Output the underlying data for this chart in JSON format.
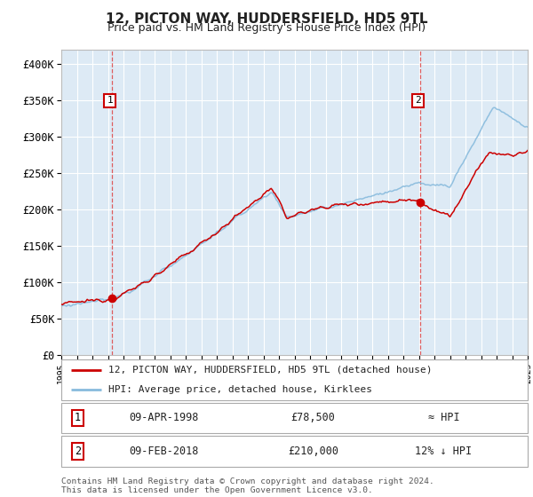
{
  "title": "12, PICTON WAY, HUDDERSFIELD, HD5 9TL",
  "subtitle": "Price paid vs. HM Land Registry's House Price Index (HPI)",
  "ylabel_ticks": [
    0,
    50000,
    100000,
    150000,
    200000,
    250000,
    300000,
    350000,
    400000
  ],
  "ylabel_labels": [
    "£0",
    "£50K",
    "£100K",
    "£150K",
    "£200K",
    "£250K",
    "£300K",
    "£350K",
    "£400K"
  ],
  "xlim_min": 1995,
  "xlim_max": 2025,
  "ylim_min": 0,
  "ylim_max": 420000,
  "bg_color": "#ddeaf5",
  "grid_color": "#ffffff",
  "sale1_year": 1998.27,
  "sale1_price": 78500,
  "sale2_year": 2018.09,
  "sale2_price": 210000,
  "red_line_color": "#cc0000",
  "blue_line_color": "#88bbdd",
  "vline_color": "#dd4444",
  "legend_line1": "12, PICTON WAY, HUDDERSFIELD, HD5 9TL (detached house)",
  "legend_line2": "HPI: Average price, detached house, Kirklees",
  "table_row1_num": "1",
  "table_row1_date": "09-APR-1998",
  "table_row1_price": "£78,500",
  "table_row1_hpi": "≈ HPI",
  "table_row2_num": "2",
  "table_row2_date": "09-FEB-2018",
  "table_row2_price": "£210,000",
  "table_row2_hpi": "12% ↓ HPI",
  "footer": "Contains HM Land Registry data © Crown copyright and database right 2024.\nThis data is licensed under the Open Government Licence v3.0."
}
